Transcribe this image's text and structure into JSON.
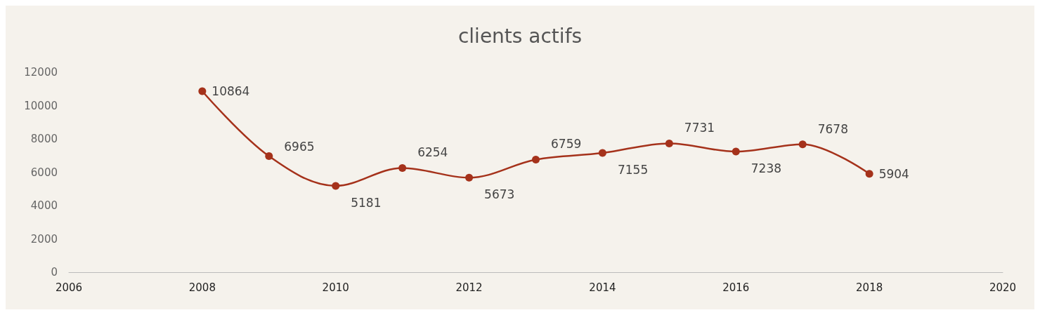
{
  "chart_data": {
    "type": "line",
    "title": "clients actifs",
    "x": [
      2008,
      2009,
      2010,
      2011,
      2012,
      2013,
      2014,
      2015,
      2016,
      2017,
      2018
    ],
    "series": [
      {
        "color": "#a5321b",
        "values": [
          10864,
          6965,
          5181,
          6254,
          5673,
          6759,
          7155,
          7731,
          7238,
          7678,
          5904
        ]
      }
    ],
    "xlim": [
      2006,
      2020
    ],
    "xticks": [
      2006,
      2008,
      2010,
      2012,
      2014,
      2016,
      2018,
      2020
    ],
    "ylim": [
      0,
      12000
    ],
    "yticks": [
      0,
      2000,
      4000,
      6000,
      8000,
      10000,
      12000
    ],
    "grid": false,
    "marker": "circle",
    "line_style": "solid",
    "data_labels": true
  }
}
